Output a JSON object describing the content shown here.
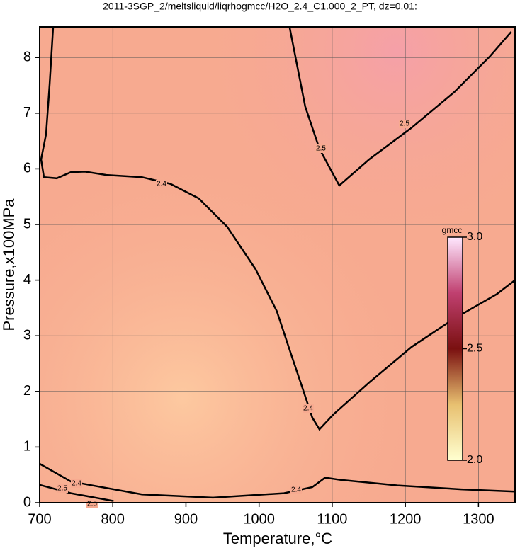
{
  "chart_data": {
    "type": "contour",
    "title": "2011-3SGP_2/meltsliquid/liqrhogmcc/H2O_2.4_C1.000_2_PT, dz=0.01:",
    "x_label": "Temperature,°C",
    "y_label": "Pressure,x100MPa",
    "xlim": [
      700,
      1350
    ],
    "ylim": [
      0,
      8.55
    ],
    "xticks": [
      700,
      800,
      900,
      1000,
      1100,
      1200,
      1300
    ],
    "yticks": [
      0,
      1,
      2,
      3,
      4,
      5,
      6,
      7,
      8
    ],
    "grid": true,
    "contours": [
      {
        "level": 2.4,
        "color": "#000000",
        "x": [
          718.4,
          713.6,
          708.7,
          701.9,
          705.8,
          723.3,
          742.7,
          762.1,
          791.3,
          839.8,
          878.6,
          917.5,
          956.3,
          995.1,
          1024.3,
          1043.7,
          1058.3,
          1072.8,
          1082.5,
          1101.9,
          1150.5,
          1208.7,
          1267,
          1325.2,
          1350
        ],
        "y": [
          8.55,
          7.51,
          6.62,
          6.17,
          5.85,
          5.83,
          5.94,
          5.95,
          5.89,
          5.85,
          5.73,
          5.47,
          4.96,
          4.2,
          3.44,
          2.67,
          2.1,
          1.53,
          1.32,
          1.59,
          2.16,
          2.8,
          3.31,
          3.75,
          4.0
        ]
      },
      {
        "level": 2.5,
        "color": "#000000",
        "x": [
          1041.7,
          1063.1,
          1082.5,
          1109.7,
          1150.5,
          1208.7,
          1267,
          1315.5,
          1344.7
        ],
        "y": [
          8.55,
          7.12,
          6.36,
          5.7,
          6.17,
          6.74,
          7.38,
          8.02,
          8.46
        ]
      },
      {
        "level": 2.4,
        "color": "#000000",
        "x": [
          700,
          742.7,
          839.8,
          936.9,
          1034,
          1072.8,
          1090.3,
          1111.7,
          1189.3,
          1276.7,
          1350
        ],
        "y": [
          0.7,
          0.38,
          0.15,
          0.09,
          0.17,
          0.28,
          0.45,
          0.41,
          0.31,
          0.24,
          0.2
        ]
      },
      {
        "level": 2.5,
        "color": "#000000",
        "x": [
          700,
          742.7,
          801
        ],
        "y": [
          0.32,
          0.17,
          0.03
        ]
      }
    ],
    "colorbar": {
      "title": "gmcc",
      "lim": [
        2.0,
        3.0
      ],
      "ticks": [
        {
          "value": 2.0,
          "label": "2.0"
        },
        {
          "value": 2.5,
          "label": "2.5"
        },
        {
          "value": 3.0,
          "label": "3.0"
        }
      ],
      "colors": [
        "#ffffd0",
        "#e8c070",
        "#7a1010",
        "#c04070",
        "#ffe8ff"
      ]
    }
  }
}
